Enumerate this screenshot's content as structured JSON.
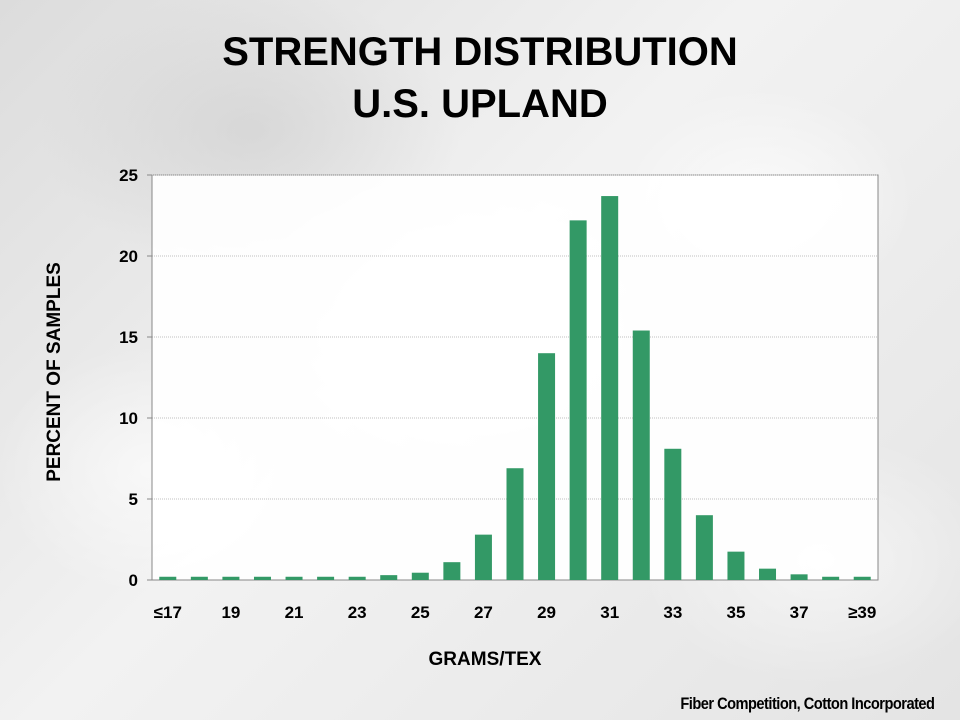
{
  "title_line1": "STRENGTH DISTRIBUTION",
  "title_line2": "U.S. UPLAND",
  "footer": "Fiber Competition, Cotton Incorporated",
  "chart_data": {
    "type": "bar",
    "categories": [
      "≤17",
      "18",
      "19",
      "20",
      "21",
      "22",
      "23",
      "24",
      "25",
      "26",
      "27",
      "28",
      "29",
      "30",
      "31",
      "32",
      "33",
      "34",
      "35",
      "36",
      "37",
      "38",
      "≥39"
    ],
    "tick_labels": [
      "≤17",
      "",
      "19",
      "",
      "21",
      "",
      "23",
      "",
      "25",
      "",
      "27",
      "",
      "29",
      "",
      "31",
      "",
      "33",
      "",
      "35",
      "",
      "37",
      "",
      "≥39"
    ],
    "values": [
      0.2,
      0.2,
      0.2,
      0.2,
      0.2,
      0.2,
      0.2,
      0.3,
      0.45,
      1.1,
      2.8,
      6.9,
      14.0,
      22.2,
      23.7,
      15.4,
      8.1,
      4.0,
      1.75,
      0.7,
      0.35,
      0.2,
      0.2
    ],
    "xlabel": "GRAMS/TEX",
    "ylabel": "PERCENT OF SAMPLES",
    "ylim": [
      0,
      25
    ],
    "yticks": [
      0,
      5,
      10,
      15,
      20,
      25
    ],
    "grid": true,
    "colors": {
      "bar": "#339966",
      "grid": "#c0c0c0",
      "axis": "#888888"
    }
  }
}
